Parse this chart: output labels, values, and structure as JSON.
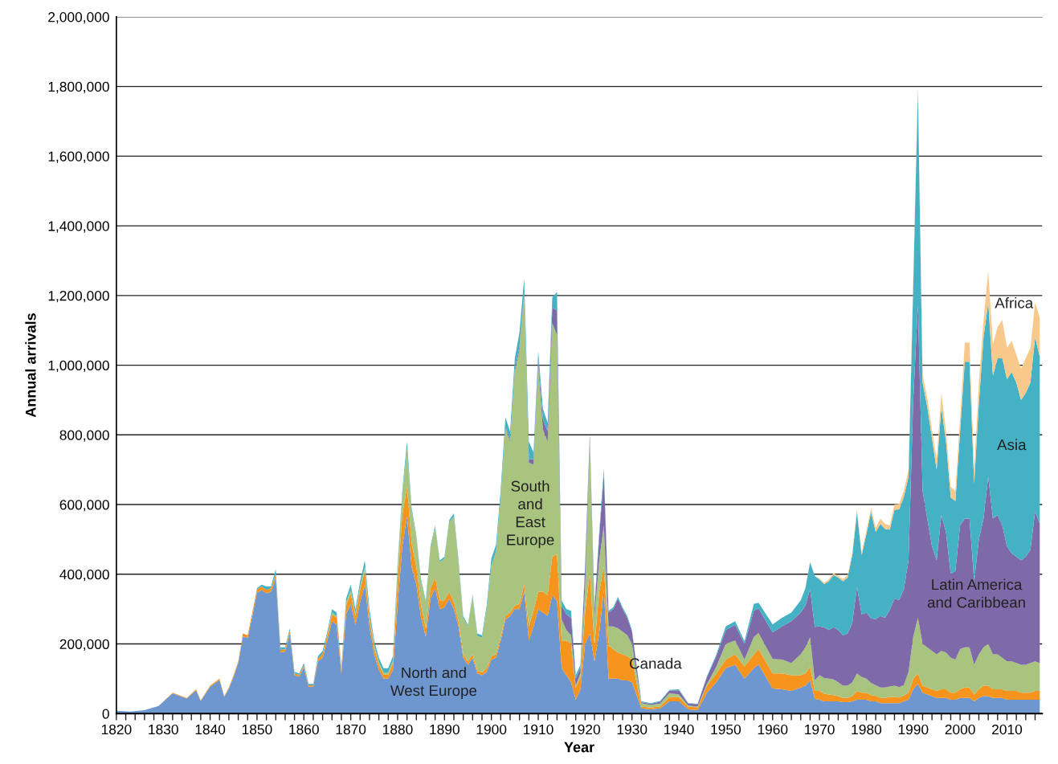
{
  "chart_data": {
    "type": "area",
    "stacked": true,
    "xlabel": "Year",
    "ylabel": "Annual arrivals",
    "x": [
      1820,
      1823,
      1826,
      1829,
      1832,
      1835,
      1837,
      1838,
      1840,
      1842,
      1843,
      1844,
      1845,
      1846,
      1847,
      1848,
      1849,
      1850,
      1851,
      1852,
      1853,
      1854,
      1855,
      1856,
      1857,
      1858,
      1859,
      1860,
      1861,
      1862,
      1863,
      1864,
      1865,
      1866,
      1867,
      1868,
      1869,
      1870,
      1871,
      1872,
      1873,
      1874,
      1875,
      1876,
      1877,
      1878,
      1879,
      1880,
      1881,
      1882,
      1883,
      1884,
      1885,
      1886,
      1887,
      1888,
      1889,
      1890,
      1891,
      1892,
      1893,
      1894,
      1895,
      1896,
      1897,
      1898,
      1899,
      1900,
      1901,
      1902,
      1903,
      1904,
      1905,
      1906,
      1907,
      1908,
      1909,
      1910,
      1911,
      1912,
      1913,
      1914,
      1915,
      1916,
      1917,
      1918,
      1919,
      1920,
      1921,
      1922,
      1923,
      1924,
      1925,
      1926,
      1927,
      1928,
      1929,
      1930,
      1932,
      1934,
      1936,
      1938,
      1940,
      1942,
      1944,
      1946,
      1948,
      1950,
      1952,
      1954,
      1956,
      1957,
      1960,
      1962,
      1964,
      1966,
      1967,
      1968,
      1969,
      1970,
      1971,
      1972,
      1973,
      1974,
      1975,
      1976,
      1977,
      1978,
      1979,
      1980,
      1981,
      1982,
      1983,
      1984,
      1985,
      1986,
      1987,
      1988,
      1989,
      1990,
      1991,
      1992,
      1993,
      1994,
      1995,
      1996,
      1997,
      1998,
      1999,
      2000,
      2001,
      2002,
      2003,
      2004,
      2005,
      2006,
      2007,
      2008,
      2009,
      2010,
      2011,
      2012,
      2013,
      2014,
      2015,
      2016,
      2017
    ],
    "series": [
      {
        "name": "North and\nWest Europe",
        "color": "#6f97cf",
        "values": [
          8000,
          6000,
          10000,
          22000,
          58000,
          43000,
          67000,
          36000,
          77000,
          96000,
          48000,
          72000,
          106000,
          145000,
          222000,
          217000,
          280000,
          347000,
          355000,
          345000,
          350000,
          390000,
          175000,
          178000,
          230000,
          110000,
          106000,
          133000,
          77000,
          77000,
          150000,
          160000,
          210000,
          265000,
          255000,
          115000,
          285000,
          315000,
          255000,
          320000,
          370000,
          250000,
          170000,
          125000,
          100000,
          100000,
          125000,
          310000,
          480000,
          565000,
          420000,
          370000,
          275000,
          220000,
          330000,
          360000,
          300000,
          305000,
          330000,
          300000,
          250000,
          160000,
          140000,
          160000,
          115000,
          110000,
          120000,
          155000,
          160000,
          210000,
          270000,
          280000,
          300000,
          300000,
          350000,
          210000,
          250000,
          300000,
          290000,
          280000,
          340000,
          323000,
          130000,
          110000,
          90000,
          40000,
          70000,
          200000,
          230000,
          150000,
          230000,
          355000,
          100000,
          100000,
          100000,
          95000,
          95000,
          90000,
          15000,
          12000,
          15000,
          35000,
          35000,
          12000,
          10000,
          60000,
          90000,
          130000,
          140000,
          100000,
          130000,
          141000,
          72000,
          70000,
          65000,
          75000,
          80000,
          95000,
          42000,
          40000,
          35000,
          35000,
          35000,
          35000,
          33000,
          33000,
          35000,
          40000,
          40000,
          40000,
          35000,
          35000,
          30000,
          30000,
          30000,
          30000,
          30000,
          35000,
          40000,
          70000,
          85000,
          60000,
          55000,
          50000,
          45000,
          45000,
          45000,
          40000,
          40000,
          45000,
          45000,
          45000,
          35000,
          45000,
          50000,
          50000,
          45000,
          45000,
          45000,
          40000,
          40000,
          40000,
          40000,
          40000,
          40000,
          40000,
          40000
        ]
      },
      {
        "name": "Canada",
        "color": "#f7941d",
        "values": [
          0,
          0,
          0,
          0,
          2000,
          2000,
          3000,
          2000,
          3000,
          4000,
          2000,
          3000,
          4000,
          5000,
          8000,
          8000,
          10000,
          10000,
          10000,
          10000,
          10000,
          10000,
          8000,
          7000,
          8000,
          5000,
          5000,
          6000,
          4000,
          4000,
          8000,
          12000,
          15000,
          20000,
          20000,
          10000,
          25000,
          30000,
          25000,
          35000,
          40000,
          25000,
          20000,
          15000,
          12000,
          12000,
          20000,
          70000,
          90000,
          85000,
          70000,
          50000,
          35000,
          25000,
          30000,
          30000,
          25000,
          20000,
          20000,
          20000,
          15000,
          10000,
          10000,
          10000,
          8000,
          8000,
          10000,
          10000,
          10000,
          10000,
          10000,
          10000,
          10000,
          15000,
          20000,
          40000,
          45000,
          50000,
          60000,
          60000,
          110000,
          134000,
          80000,
          100000,
          110000,
          35000,
          35000,
          90000,
          175000,
          45000,
          120000,
          67000,
          95000,
          85000,
          75000,
          75000,
          70000,
          65000,
          5000,
          5000,
          6000,
          12000,
          12000,
          8000,
          8000,
          20000,
          25000,
          25000,
          30000,
          35000,
          40000,
          44000,
          43000,
          45000,
          45000,
          35000,
          35000,
          39000,
          23000,
          25000,
          22000,
          20000,
          18000,
          15000,
          12000,
          12000,
          15000,
          25000,
          20000,
          20000,
          18000,
          16000,
          15000,
          15000,
          18000,
          18000,
          16000,
          17000,
          20000,
          30000,
          30000,
          20000,
          20000,
          20000,
          20000,
          25000,
          25000,
          20000,
          20000,
          25000,
          30000,
          30000,
          20000,
          25000,
          30000,
          30000,
          25000,
          25000,
          25000,
          25000,
          25000,
          25000,
          20000,
          20000,
          20000,
          25000,
          25000
        ]
      },
      {
        "name": "South\nand\nEast\nEurope",
        "color": "#a9c47f",
        "values": [
          0,
          0,
          0,
          0,
          0,
          0,
          0,
          0,
          0,
          0,
          0,
          0,
          0,
          0,
          0,
          0,
          0,
          0,
          0,
          0,
          0,
          0,
          0,
          0,
          0,
          0,
          0,
          0,
          0,
          0,
          0,
          0,
          3000,
          5000,
          5000,
          3000,
          8000,
          10000,
          8000,
          10000,
          12000,
          10000,
          8000,
          8000,
          6000,
          6000,
          8000,
          40000,
          60000,
          110000,
          90000,
          85000,
          70000,
          75000,
          115000,
          145000,
          110000,
          120000,
          200000,
          245000,
          165000,
          105000,
          100000,
          165000,
          100000,
          100000,
          170000,
          260000,
          295000,
          405000,
          540000,
          490000,
          670000,
          730000,
          830000,
          470000,
          420000,
          650000,
          465000,
          440000,
          670000,
          630000,
          60000,
          30000,
          25000,
          5000,
          10000,
          70000,
          380000,
          80000,
          90000,
          118000,
          55000,
          65000,
          70000,
          65000,
          60000,
          45000,
          10000,
          8000,
          8000,
          12000,
          8000,
          3000,
          2000,
          5000,
          20000,
          45000,
          40000,
          20000,
          50000,
          46000,
          42000,
          40000,
          35000,
          60000,
          75000,
          85000,
          30000,
          45000,
          45000,
          45000,
          45000,
          40000,
          35000,
          35000,
          40000,
          50000,
          45000,
          40000,
          35000,
          30000,
          30000,
          30000,
          30000,
          32000,
          30000,
          30000,
          60000,
          120000,
          160000,
          120000,
          115000,
          110000,
          105000,
          110000,
          105000,
          100000,
          95000,
          115000,
          115000,
          115000,
          85000,
          100000,
          110000,
          120000,
          100000,
          100000,
          90000,
          85000,
          85000,
          80000,
          80000,
          80000,
          85000,
          85000,
          80000
        ]
      },
      {
        "name": "Latin America\nand Caribbean",
        "color": "#7e6aa8",
        "values": [
          0,
          0,
          0,
          0,
          0,
          0,
          0,
          0,
          0,
          0,
          0,
          0,
          0,
          0,
          0,
          0,
          0,
          0,
          0,
          0,
          0,
          0,
          0,
          0,
          0,
          0,
          0,
          0,
          0,
          0,
          0,
          0,
          0,
          0,
          0,
          0,
          0,
          0,
          0,
          0,
          0,
          0,
          0,
          0,
          0,
          0,
          0,
          0,
          0,
          0,
          0,
          0,
          0,
          0,
          0,
          0,
          0,
          0,
          0,
          0,
          0,
          0,
          0,
          0,
          0,
          0,
          0,
          0,
          0,
          0,
          5000,
          5000,
          10000,
          10000,
          10000,
          10000,
          15000,
          20000,
          30000,
          30000,
          45000,
          70000,
          40000,
          45000,
          50000,
          20000,
          15000,
          55000,
          15000,
          25000,
          65000,
          150000,
          40000,
          50000,
          85000,
          65000,
          50000,
          35000,
          3000,
          3000,
          5000,
          7000,
          12000,
          6000,
          7000,
          20000,
          30000,
          40000,
          45000,
          45000,
          75000,
          71000,
          76000,
          95000,
          120000,
          120000,
          120000,
          138000,
          154000,
          140000,
          145000,
          140000,
          150000,
          150000,
          145000,
          150000,
          170000,
          249000,
          180000,
          190000,
          185000,
          190000,
          205000,
          200000,
          220000,
          250000,
          250000,
          275000,
          320000,
          680000,
          897000,
          440000,
          370000,
          300000,
          270000,
          390000,
          345000,
          240000,
          255000,
          355000,
          370000,
          370000,
          240000,
          330000,
          370000,
          480000,
          390000,
          400000,
          380000,
          330000,
          310000,
          305000,
          300000,
          310000,
          325000,
          430000,
          400000
        ]
      },
      {
        "name": "Asia",
        "color": "#45b1c4",
        "values": [
          0,
          0,
          0,
          0,
          0,
          0,
          0,
          0,
          0,
          0,
          0,
          0,
          0,
          0,
          0,
          0,
          0,
          3000,
          5000,
          10000,
          5000,
          15000,
          7000,
          5000,
          7000,
          5000,
          4000,
          6000,
          4000,
          4000,
          7000,
          8000,
          7000,
          10000,
          10000,
          7000,
          12000,
          15000,
          12000,
          15000,
          18000,
          15000,
          12000,
          12000,
          12000,
          12000,
          12000,
          10000,
          10000,
          20000,
          10000,
          5000,
          5000,
          5000,
          5000,
          5000,
          5000,
          5000,
          5000,
          10000,
          10000,
          5000,
          5000,
          5000,
          7000,
          7000,
          10000,
          20000,
          20000,
          20000,
          25000,
          25000,
          30000,
          40000,
          40000,
          50000,
          20000,
          20000,
          30000,
          25000,
          30000,
          53000,
          15000,
          15000,
          20000,
          10000,
          10000,
          15000,
          5000,
          10000,
          15000,
          15000,
          5000,
          5000,
          5000,
          5000,
          5000,
          5000,
          2000,
          2000,
          2000,
          2000,
          3000,
          1000,
          1000,
          3000,
          5000,
          10000,
          10000,
          8000,
          20000,
          16000,
          23000,
          25000,
          25000,
          35000,
          50000,
          77000,
          146000,
          135000,
          125000,
          140000,
          150000,
          150000,
          155000,
          160000,
          195000,
          215000,
          170000,
          225000,
          305000,
          250000,
          265000,
          255000,
          230000,
          255000,
          260000,
          265000,
          240000,
          330000,
          618000,
          310000,
          320000,
          310000,
          260000,
          310000,
          260000,
          220000,
          200000,
          270000,
          450000,
          450000,
          280000,
          390000,
          520000,
          500000,
          410000,
          450000,
          480000,
          480000,
          520000,
          500000,
          460000,
          470000,
          480000,
          500000,
          480000
        ]
      },
      {
        "name": "Africa",
        "color": "#f9c98b",
        "values": [
          0,
          0,
          0,
          0,
          0,
          0,
          0,
          0,
          0,
          0,
          0,
          0,
          0,
          0,
          0,
          0,
          0,
          0,
          0,
          0,
          0,
          0,
          0,
          0,
          0,
          0,
          0,
          0,
          0,
          0,
          0,
          0,
          0,
          0,
          0,
          0,
          0,
          0,
          0,
          0,
          0,
          0,
          0,
          0,
          0,
          0,
          0,
          0,
          0,
          0,
          0,
          0,
          0,
          0,
          0,
          0,
          0,
          0,
          0,
          0,
          0,
          0,
          0,
          0,
          0,
          0,
          0,
          0,
          0,
          0,
          0,
          0,
          0,
          0,
          0,
          0,
          0,
          0,
          0,
          0,
          0,
          0,
          0,
          0,
          0,
          0,
          0,
          0,
          0,
          0,
          0,
          0,
          0,
          0,
          0,
          0,
          0,
          0,
          0,
          0,
          0,
          0,
          0,
          0,
          0,
          0,
          0,
          0,
          0,
          0,
          0,
          0,
          0,
          0,
          0,
          0,
          2000,
          3000,
          0,
          3000,
          3000,
          5000,
          5000,
          5000,
          6000,
          7000,
          8000,
          8000,
          7000,
          10000,
          12000,
          12000,
          15000,
          15000,
          12000,
          15000,
          16000,
          18000,
          20000,
          20000,
          10000,
          25000,
          25000,
          25000,
          30000,
          40000,
          30000,
          30000,
          30000,
          40000,
          55000,
          55000,
          40000,
          60000,
          50000,
          90000,
          90000,
          90000,
          110000,
          90000,
          90000,
          80000,
          90000,
          100000,
          100000,
          100000,
          110000
        ]
      }
    ],
    "xlim": [
      1820,
      2017.5
    ],
    "xticks": [
      1820,
      {
        "value": 1822,
        "label": null
      },
      {
        "value": 1824,
        "label": null
      },
      {
        "value": 1826,
        "label": null
      },
      {
        "value": 1828,
        "label": null
      },
      1830,
      {
        "value": 1832,
        "label": null
      },
      {
        "value": 1834,
        "label": null
      },
      {
        "value": 1836,
        "label": null
      },
      {
        "value": 1838,
        "label": null
      },
      1840,
      {
        "value": 1842,
        "label": null
      },
      {
        "value": 1844,
        "label": null
      },
      {
        "value": 1846,
        "label": null
      },
      {
        "value": 1848,
        "label": null
      },
      1850,
      {
        "value": 1852,
        "label": null
      },
      {
        "value": 1854,
        "label": null
      },
      {
        "value": 1856,
        "label": null
      },
      {
        "value": 1858,
        "label": null
      },
      1860,
      {
        "value": 1862,
        "label": null
      },
      {
        "value": 1864,
        "label": null
      },
      {
        "value": 1866,
        "label": null
      },
      {
        "value": 1868,
        "label": null
      },
      1870,
      {
        "value": 1872,
        "label": null
      },
      {
        "value": 1874,
        "label": null
      },
      {
        "value": 1876,
        "label": null
      },
      {
        "value": 1878,
        "label": null
      },
      1880,
      {
        "value": 1882,
        "label": null
      },
      {
        "value": 1884,
        "label": null
      },
      {
        "value": 1886,
        "label": null
      },
      {
        "value": 1888,
        "label": null
      },
      1890,
      {
        "value": 1892,
        "label": null
      },
      {
        "value": 1894,
        "label": null
      },
      {
        "value": 1896,
        "label": null
      },
      {
        "value": 1898,
        "label": null
      },
      1900,
      {
        "value": 1902,
        "label": null
      },
      {
        "value": 1904,
        "label": null
      },
      {
        "value": 1906,
        "label": null
      },
      {
        "value": 1908,
        "label": null
      },
      1910,
      {
        "value": 1912,
        "label": null
      },
      {
        "value": 1914,
        "label": null
      },
      {
        "value": 1916,
        "label": null
      },
      {
        "value": 1918,
        "label": null
      },
      1920,
      {
        "value": 1922,
        "label": null
      },
      {
        "value": 1924,
        "label": null
      },
      {
        "value": 1926,
        "label": null
      },
      {
        "value": 1928,
        "label": null
      },
      1930,
      {
        "value": 1932,
        "label": null
      },
      {
        "value": 1934,
        "label": null
      },
      {
        "value": 1936,
        "label": null
      },
      {
        "value": 1938,
        "label": null
      },
      1940,
      {
        "value": 1942,
        "label": null
      },
      {
        "value": 1944,
        "label": null
      },
      {
        "value": 1946,
        "label": null
      },
      {
        "value": 1948,
        "label": null
      },
      1950,
      {
        "value": 1952,
        "label": null
      },
      {
        "value": 1954,
        "label": null
      },
      {
        "value": 1956,
        "label": null
      },
      {
        "value": 1958,
        "label": null
      },
      1960,
      {
        "value": 1962,
        "label": null
      },
      {
        "value": 1964,
        "label": null
      },
      {
        "value": 1966,
        "label": null
      },
      {
        "value": 1968,
        "label": null
      },
      1970,
      {
        "value": 1972,
        "label": null
      },
      {
        "value": 1974,
        "label": null
      },
      {
        "value": 1976,
        "label": null
      },
      {
        "value": 1978,
        "label": null
      },
      1980,
      {
        "value": 1982,
        "label": null
      },
      {
        "value": 1984,
        "label": null
      },
      {
        "value": 1986,
        "label": null
      },
      {
        "value": 1988,
        "label": null
      },
      1990,
      {
        "value": 1992,
        "label": null
      },
      {
        "value": 1994,
        "label": null
      },
      {
        "value": 1996,
        "label": null
      },
      {
        "value": 1998,
        "label": null
      },
      2000,
      {
        "value": 2002,
        "label": null
      },
      {
        "value": 2004,
        "label": null
      },
      {
        "value": 2006,
        "label": null
      },
      {
        "value": 2008,
        "label": null
      },
      2010,
      {
        "value": 2012,
        "label": null
      },
      {
        "value": 2014,
        "label": null
      },
      {
        "value": 2016,
        "label": null
      }
    ],
    "ylim": [
      0,
      2000000
    ],
    "yticks": [
      0,
      {
        "value": 200000,
        "label": "200,000"
      },
      {
        "value": 400000,
        "label": "400,000"
      },
      {
        "value": 600000,
        "label": "600,000"
      },
      {
        "value": 800000,
        "label": "800,000"
      },
      {
        "value": 1000000,
        "label": "1,000,000"
      },
      {
        "value": 1200000,
        "label": "1,200,000"
      },
      {
        "value": 1400000,
        "label": "1,400,000"
      },
      {
        "value": 1600000,
        "label": "1,600,000"
      },
      {
        "value": 1800000,
        "label": "1,800,000"
      },
      {
        "value": 2000000,
        "label": "2,000,000"
      }
    ],
    "grid": "y",
    "legend": false
  }
}
